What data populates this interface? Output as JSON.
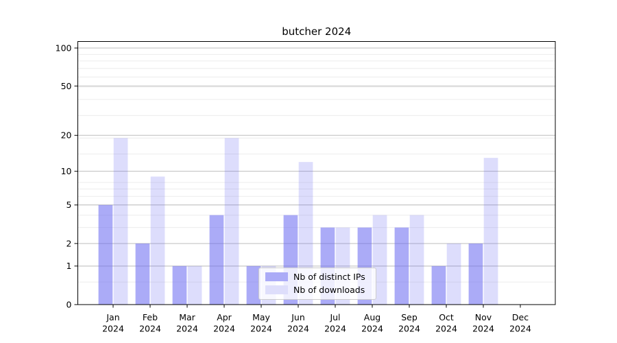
{
  "title": "butcher 2024",
  "legend": {
    "swatch_colors": [
      "#ababf7",
      "#dedefb"
    ]
  },
  "chart_data": {
    "type": "bar",
    "title": "butcher 2024",
    "xlabel": "",
    "ylabel": "",
    "categories": [
      "Jan 2024",
      "Feb 2024",
      "Mar 2024",
      "Apr 2024",
      "May 2024",
      "Jun 2024",
      "Jul 2024",
      "Aug 2024",
      "Sep 2024",
      "Oct 2024",
      "Nov 2024",
      "Dec 2024"
    ],
    "series": [
      {
        "name": "Nb of distinct IPs",
        "color": "#6666f0",
        "opacity": 0.55,
        "values": [
          5,
          2,
          1,
          4,
          1,
          4,
          3,
          3,
          3,
          1,
          2,
          0
        ]
      },
      {
        "name": "Nb of downloads",
        "color": "#6666f0",
        "opacity": 0.22,
        "values": [
          19,
          9,
          1,
          19,
          1,
          12,
          3,
          4,
          4,
          2,
          13,
          0
        ]
      }
    ],
    "yticks": [
      0,
      1,
      2,
      5,
      10,
      20,
      50,
      100
    ],
    "ylim": [
      0,
      112
    ],
    "yscale": "log10(1+x)",
    "grid": "major and minor horizontal",
    "legend_position": "lower center"
  }
}
